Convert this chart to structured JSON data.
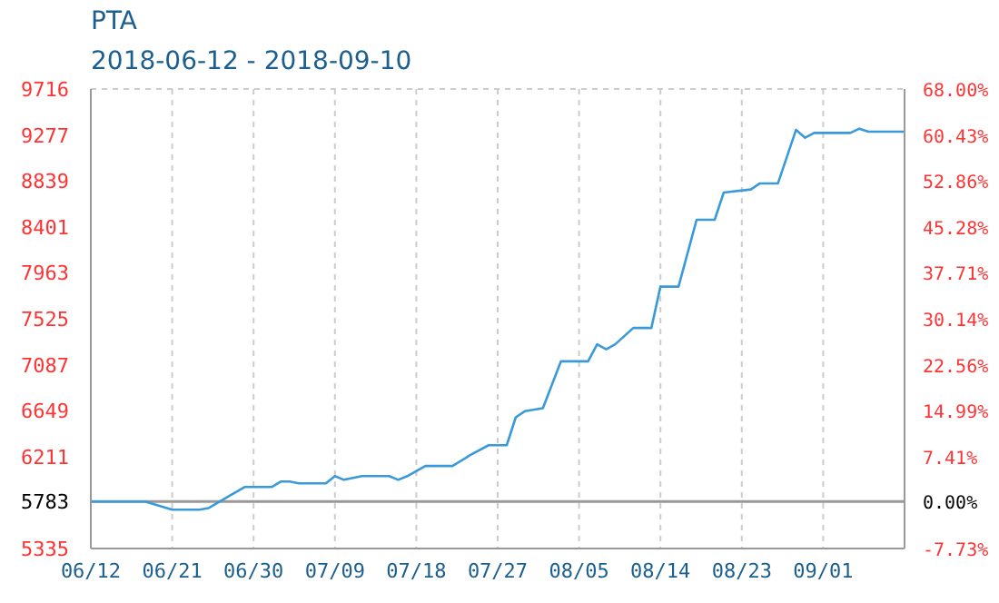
{
  "chart_data": {
    "type": "line",
    "title": "PTA",
    "subtitle": "2018-06-12 - 2018-09-10",
    "x": [
      "2018-06-12",
      "2018-06-18",
      "2018-06-21",
      "2018-06-24",
      "2018-06-25",
      "2018-06-29",
      "2018-07-02",
      "2018-07-03",
      "2018-07-04",
      "2018-07-05",
      "2018-07-08",
      "2018-07-09",
      "2018-07-10",
      "2018-07-12",
      "2018-07-15",
      "2018-07-16",
      "2018-07-17",
      "2018-07-19",
      "2018-07-22",
      "2018-07-24",
      "2018-07-26",
      "2018-07-28",
      "2018-07-29",
      "2018-07-30",
      "2018-08-01",
      "2018-08-03",
      "2018-08-06",
      "2018-08-07",
      "2018-08-08",
      "2018-08-09",
      "2018-08-11",
      "2018-08-13",
      "2018-08-14",
      "2018-08-16",
      "2018-08-18",
      "2018-08-20",
      "2018-08-21",
      "2018-08-24",
      "2018-08-25",
      "2018-08-27",
      "2018-08-29",
      "2018-08-30",
      "2018-08-31",
      "2018-09-04",
      "2018-09-05",
      "2018-09-06",
      "2018-09-10"
    ],
    "series": [
      {
        "color": "#3a9ad9",
        "values": [
          5783,
          5783,
          5705,
          5705,
          5720,
          5921,
          5921,
          5973,
          5973,
          5956,
          5956,
          6025,
          5990,
          6025,
          6025,
          5990,
          6025,
          6122,
          6122,
          6227,
          6320,
          6320,
          6586,
          6644,
          6673,
          7120,
          7120,
          7282,
          7235,
          7282,
          7438,
          7438,
          7832,
          7832,
          8469,
          8469,
          8729,
          8758,
          8816,
          8816,
          9327,
          9251,
          9297,
          9297,
          9338,
          9309,
          9309
        ]
      }
    ],
    "xlim": [
      "2018-06-12",
      "2018-09-10"
    ],
    "xticks": [
      {
        "value": "2018-06-12",
        "label": "06/12"
      },
      {
        "value": "2018-06-21",
        "label": "06/21"
      },
      {
        "value": "2018-06-30",
        "label": "06/30"
      },
      {
        "value": "2018-07-09",
        "label": "07/09"
      },
      {
        "value": "2018-07-18",
        "label": "07/18"
      },
      {
        "value": "2018-07-27",
        "label": "07/27"
      },
      {
        "value": "2018-08-05",
        "label": "08/05"
      },
      {
        "value": "2018-08-14",
        "label": "08/14"
      },
      {
        "value": "2018-08-23",
        "label": "08/23"
      },
      {
        "value": "2018-09-01",
        "label": "09/01"
      }
    ],
    "ylim": [
      5335,
      9716
    ],
    "yticks": [
      5335,
      5783,
      6211,
      6649,
      7087,
      7525,
      7963,
      8401,
      8839,
      9277,
      9716
    ],
    "y2lim": [
      -7.73,
      68.0
    ],
    "y2ticks": [
      {
        "value": -7.73,
        "label": "-7.73%"
      },
      {
        "value": 0,
        "label": "0.00%"
      },
      {
        "value": 7.41,
        "label": "7.41%"
      },
      {
        "value": 14.99,
        "label": "14.99%"
      },
      {
        "value": 22.56,
        "label": "22.56%"
      },
      {
        "value": 30.14,
        "label": "30.14%"
      },
      {
        "value": 37.71,
        "label": "37.71%"
      },
      {
        "value": 45.28,
        "label": "45.28%"
      },
      {
        "value": 52.86,
        "label": "52.86%"
      },
      {
        "value": 60.43,
        "label": "60.43%"
      },
      {
        "value": 68.0,
        "label": "68.00%"
      }
    ],
    "ref_lines": [
      {
        "axis": "y",
        "value": 5783,
        "color": "#999999"
      }
    ],
    "grid": true,
    "marker": "none",
    "line_style": "solid"
  }
}
